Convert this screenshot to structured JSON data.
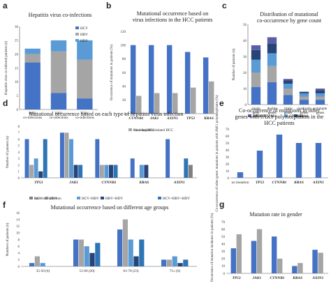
{
  "colors": {
    "blue": "#4472c4",
    "gray": "#a5a5a5",
    "lightblue": "#5b9bd5",
    "navy": "#264478",
    "teal": "#2e75b6",
    "mid": "#7f7f7f",
    "purple": "#5b5ea6"
  },
  "chart_data": [
    {
      "panel": "a",
      "type": "bar",
      "stacked": true,
      "title": "Hepatitis virus co-infections",
      "ylabel": "Hepatitis virus co-infected patients (n)",
      "ylim": [
        0,
        30
      ],
      "yticks": [
        0,
        5,
        10,
        15,
        20,
        25,
        30
      ],
      "categories": [
        "HCV co-infections",
        "HBV co-infections",
        "HDV co-infections"
      ],
      "category_lines": [
        [
          "HCV",
          "co-infections"
        ],
        [
          "HBV",
          "co-infections"
        ],
        [
          "HDV",
          "co-infections"
        ]
      ],
      "series": [
        {
          "name": "HCV",
          "values": [
            17,
            6,
            4
          ]
        },
        {
          "name": "HBV",
          "values": [
            3,
            15,
            14
          ]
        },
        {
          "name": "HDV",
          "values": [
            2,
            4,
            7
          ]
        }
      ],
      "legend": [
        "HCV",
        "HBV",
        "HDV"
      ]
    },
    {
      "panel": "b",
      "type": "bar",
      "title": "Mutational occurrence based on virus infections in the HCC patients",
      "title_lines": [
        "Mutational occurrence based on",
        "virus infections in the HCC patients"
      ],
      "ylabel": "Occurrence of mutations in patients (%)",
      "ylim": [
        0,
        120
      ],
      "yticks": [
        0,
        20,
        40,
        60,
        80,
        100,
        120
      ],
      "categories": [
        "CTNNB1",
        "JAK1",
        "AXIN1",
        "TP53",
        "KRAS"
      ],
      "series": [
        {
          "name": "Viral hepatitis-related HCC",
          "values": [
            100,
            100,
            100,
            90,
            82
          ]
        },
        {
          "name": "non-viral HCC",
          "values": [
            26,
            30,
            30,
            38,
            47
          ]
        }
      ]
    },
    {
      "panel": "c",
      "type": "bar",
      "stacked": true,
      "title": "Distribution of mutational co-occurrence by gene count",
      "title_lines": [
        "Distribution of mutational",
        "co-occurrence by gene count"
      ],
      "ylabel": "Number of patients (n)",
      "ylim": [
        0,
        50
      ],
      "yticks": [
        0,
        10,
        20,
        30,
        40,
        50
      ],
      "categories": [
        "single gene",
        "double genes",
        "triple genes",
        "quadruple genes",
        "quintuple genes"
      ],
      "category_lines": [
        [
          "single",
          "gene"
        ],
        [
          "double",
          "genes"
        ],
        [
          "triple",
          "genes"
        ],
        [
          "quadruple",
          "genes"
        ],
        [
          "quintuple",
          "genes"
        ]
      ],
      "series": [
        {
          "name": "TP53",
          "values": [
            11,
            14,
            6,
            3,
            3
          ]
        },
        {
          "name": "JAK1",
          "values": [
            9,
            10,
            4,
            2,
            2
          ]
        },
        {
          "name": "CTNNB1",
          "values": [
            8,
            8,
            3,
            2,
            2
          ]
        },
        {
          "name": "KRAS",
          "values": [
            6,
            6,
            2,
            1,
            2
          ]
        },
        {
          "name": "AXIN1",
          "values": [
            3,
            4,
            1,
            0,
            1
          ]
        }
      ]
    },
    {
      "panel": "d",
      "type": "bar",
      "title": "Mutational occurrence based on each type of hepatitis virus infection",
      "ylabel": "Number of patients (n)",
      "ylim": [
        0,
        8
      ],
      "yticks": [
        0,
        1,
        2,
        3,
        4,
        5,
        6,
        7,
        8
      ],
      "categories": [
        "TP53",
        "JAK1",
        "CTNNB1",
        "KRAS",
        "AXIN1"
      ],
      "series": [
        {
          "name": "HCV",
          "values": [
            6,
            7,
            6,
            3,
            6
          ]
        },
        {
          "name": "HBV",
          "values": [
            2,
            7,
            2,
            0,
            0
          ]
        },
        {
          "name": "HCV+HBV",
          "values": [
            3,
            6,
            2,
            2,
            0
          ]
        },
        {
          "name": "HBV+HDV",
          "values": [
            1,
            2,
            2,
            2,
            0
          ]
        },
        {
          "name": "HCV+HBV+HDV",
          "values": [
            6,
            2,
            2,
            0,
            3
          ]
        },
        {
          "name": "non-viral infection",
          "values": [
            0,
            0,
            0,
            0,
            2
          ]
        }
      ]
    },
    {
      "panel": "e",
      "type": "bar",
      "title": "Co-occurrence of mutations in other genes with JAK1 polymorphisms in the HCC patients",
      "title_lines": [
        "Co-occurrence of mutations in other",
        "genes with JAK1 polymorphisms in the",
        "HCC patients"
      ],
      "ylabel": "Co-occurrence of other genes' mutations in patients with JAK1 polymorphisms (%)",
      "ylim": [
        0,
        70
      ],
      "yticks": [
        0,
        10,
        20,
        30,
        40,
        50,
        60,
        70
      ],
      "categories": [
        "no mutation",
        "TP53",
        "CTNNB1",
        "KRAS",
        "AXIN1"
      ],
      "series": [
        {
          "name": "",
          "values": [
            8,
            39,
            62,
            50,
            50
          ]
        }
      ]
    },
    {
      "panel": "f",
      "type": "bar",
      "title": "Mutational occurrence based on different age groups",
      "ylabel": "Numbers of patients (n)",
      "ylim": [
        0,
        16
      ],
      "yticks": [
        0,
        2,
        4,
        6,
        8,
        10,
        12,
        14,
        16
      ],
      "categories": [
        "35-50 (6)",
        "51-60 (20)",
        "61-70 (23)",
        "71≤ (6)"
      ],
      "series": [
        {
          "name": "TP53",
          "values": [
            1,
            8,
            11,
            2
          ]
        },
        {
          "name": "JAK1",
          "values": [
            3,
            8,
            14,
            2
          ]
        },
        {
          "name": "CTNNB1",
          "values": [
            1,
            6,
            8,
            3
          ]
        },
        {
          "name": "KRAS",
          "values": [
            0,
            4,
            3,
            1
          ]
        },
        {
          "name": "AXIN1",
          "values": [
            0,
            7,
            8,
            2
          ]
        }
      ]
    },
    {
      "panel": "g",
      "type": "bar",
      "title": "Mutation rate in gender",
      "ylabel": "Occurrence of mutation incidence in patients (%)",
      "ylim": [
        0,
        70
      ],
      "yticks": [
        0,
        10,
        20,
        30,
        40,
        50,
        60,
        70
      ],
      "categories": [
        "TP53",
        "JAK1",
        "CTNNB1",
        "KRAS",
        "AXIN1"
      ],
      "series": [
        {
          "name": "male",
          "values": [
            34,
            44,
            50,
            10,
            32
          ]
        },
        {
          "name": "female",
          "values": [
            53,
            60,
            20,
            14,
            28
          ]
        }
      ]
    }
  ]
}
